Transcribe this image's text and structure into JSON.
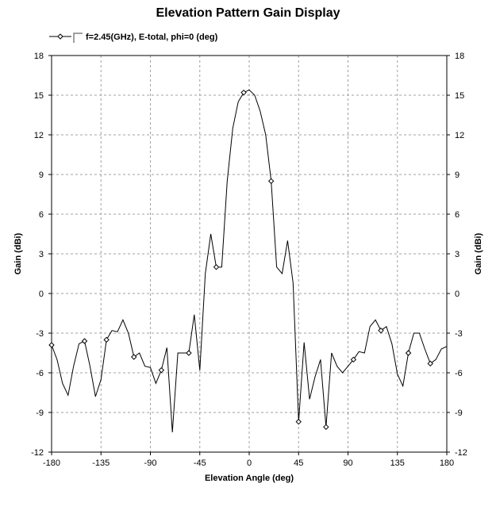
{
  "chart_data": {
    "type": "line",
    "title": "Elevation Pattern Gain Display",
    "xlabel": "Elevation Angle (deg)",
    "ylabel": "Gain (dBi)",
    "ylabel_right": "Gain (dBi)",
    "xlim": [
      -180,
      180
    ],
    "ylim": [
      -12,
      18
    ],
    "x_ticks": [
      -180,
      -135,
      -90,
      -45,
      0,
      45,
      90,
      135,
      180
    ],
    "y_ticks": [
      18,
      15,
      12,
      9,
      6,
      3,
      0,
      -3,
      -6,
      -9,
      -12
    ],
    "grid": true,
    "legend_position": "top-left",
    "series": [
      {
        "name": "f=2.45(GHz), E-total, phi=0 (deg)",
        "color": "#000000",
        "marker": "diamond",
        "x": [
          -180,
          -175,
          -170,
          -165,
          -160,
          -155,
          -150,
          -145,
          -140,
          -135,
          -130,
          -125,
          -120,
          -115,
          -110,
          -105,
          -100,
          -95,
          -90,
          -85,
          -80,
          -75,
          -70,
          -65,
          -60,
          -55,
          -50,
          -45,
          -40,
          -35,
          -30,
          -25,
          -20,
          -15,
          -10,
          -5,
          0,
          5,
          10,
          15,
          20,
          25,
          30,
          35,
          40,
          45,
          50,
          55,
          60,
          65,
          70,
          75,
          80,
          85,
          90,
          95,
          100,
          105,
          110,
          115,
          120,
          125,
          130,
          135,
          140,
          145,
          150,
          155,
          160,
          165,
          170,
          175,
          180
        ],
        "values": [
          -3.9,
          -5.0,
          -6.8,
          -7.7,
          -5.5,
          -3.8,
          -3.6,
          -5.5,
          -7.8,
          -6.5,
          -3.5,
          -2.8,
          -2.9,
          -2.0,
          -3.0,
          -4.8,
          -4.5,
          -5.5,
          -5.6,
          -6.8,
          -5.8,
          -4.1,
          -10.5,
          -4.5,
          -4.5,
          -4.5,
          -1.6,
          -5.8,
          1.5,
          4.5,
          2.0,
          2.0,
          8.5,
          12.5,
          14.5,
          15.2,
          15.4,
          15.0,
          13.8,
          12.0,
          8.5,
          2.0,
          1.5,
          4.0,
          0.8,
          -9.7,
          -3.7,
          -8.0,
          -6.3,
          -5.0,
          -10.1,
          -4.5,
          -5.5,
          -6.0,
          -5.5,
          -5.0,
          -4.4,
          -4.5,
          -2.5,
          -2.0,
          -2.8,
          -2.5,
          -3.8,
          -6.1,
          -7.0,
          -4.5,
          -3.0,
          -3.0,
          -4.2,
          -5.3,
          -5.0,
          -4.2,
          -4.0
        ],
        "marker_x": [
          -180,
          -150,
          -130,
          -105,
          -80,
          -55,
          -30,
          -5,
          20,
          45,
          70,
          95,
          120,
          145,
          165
        ]
      }
    ]
  }
}
